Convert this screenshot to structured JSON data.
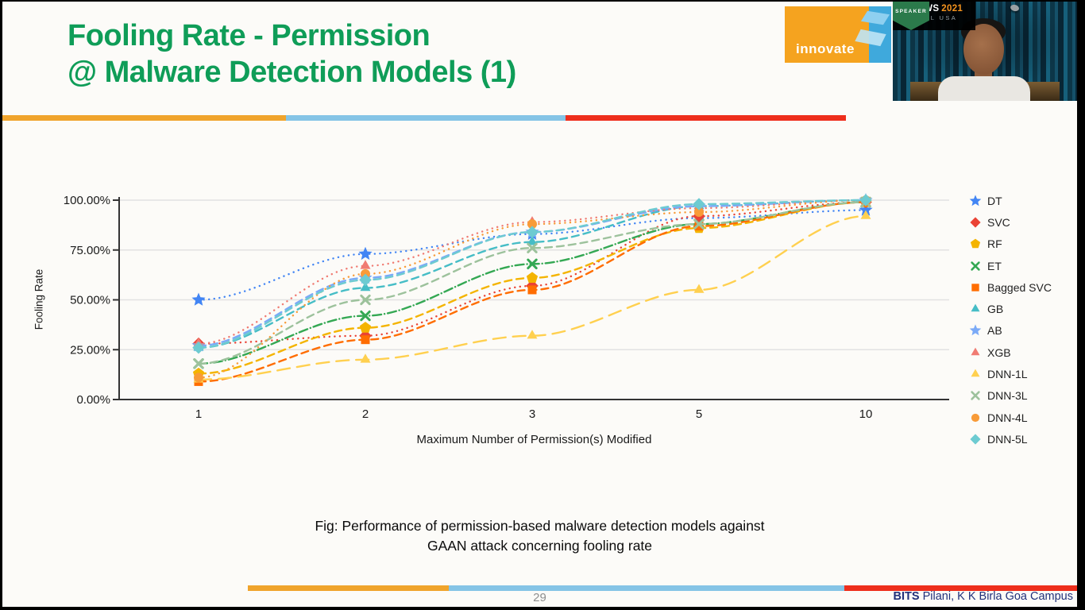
{
  "slide": {
    "title_line1": "Fooling Rate - Permission",
    "title_line2": "@ Malware Detection Models (1)",
    "caption_line1": "Fig: Performance of permission-based malware detection models against",
    "caption_line2": "GAAN attack concerning fooling rate",
    "page_number": "29",
    "footer": {
      "bold": "BITS",
      "rest": " Pilani, K K Birla Goa Campus"
    }
  },
  "logo": {
    "text": "innovate"
  },
  "webcam": {
    "event_logo": {
      "glyph": "✳",
      "name": "DFRWS",
      "year": "2021",
      "subtitle": "VIRTUAL USA"
    },
    "badge": "SPEAKER"
  },
  "colors": {
    "title_green": "#0F9D58",
    "bar_gold": "#F0A42C",
    "bar_blue": "#85C4E6",
    "bar_red": "#EE2E1C",
    "footer_navy": "#21307A",
    "page_gray": "#8E8E8E",
    "logo_orange": "#F5A31F",
    "logo_blue": "#3FA9DC",
    "speaker_green": "#2B7A4B",
    "dfrws_orange": "#F7941D",
    "axis_dark": "#333333",
    "grid_gray": "#E2E2E2",
    "tick_text": "#1A1A1A"
  },
  "chart_data": {
    "type": "line",
    "title": "",
    "xlabel": "Maximum Number of Permission(s) Modified",
    "ylabel": "Fooling Rate",
    "categories": [
      1,
      2,
      3,
      5,
      10
    ],
    "x_tick_labels": [
      "1",
      "2",
      "3",
      "5",
      "10"
    ],
    "y_ticks": [
      "0.00%",
      "25.00%",
      "50.00%",
      "75.00%",
      "100.00%"
    ],
    "ylim": [
      0,
      100
    ],
    "grid": true,
    "legend_position": "right",
    "series": [
      {
        "name": "DT",
        "color": "#4285F4",
        "marker": "star",
        "dash": "dotted",
        "values": [
          50,
          73,
          83,
          91,
          95
        ]
      },
      {
        "name": "SVC",
        "color": "#EA4335",
        "marker": "diamond",
        "dash": "dotted",
        "values": [
          28,
          32,
          57,
          92,
          99
        ]
      },
      {
        "name": "RF",
        "color": "#F4B400",
        "marker": "pentagon",
        "dash": "dashed",
        "values": [
          13,
          36,
          61,
          86,
          99
        ]
      },
      {
        "name": "ET",
        "color": "#34A853",
        "marker": "x",
        "dash": "dashdot",
        "values": [
          18,
          42,
          68,
          88,
          99
        ]
      },
      {
        "name": "Bagged SVC",
        "color": "#FF6D01",
        "marker": "square",
        "dash": "dashed",
        "values": [
          9,
          30,
          55,
          87,
          99
        ]
      },
      {
        "name": "GB",
        "color": "#46BDC6",
        "marker": "triangle",
        "dash": "dashed",
        "values": [
          26,
          56,
          79,
          97,
          100
        ]
      },
      {
        "name": "AB",
        "color": "#7BAAF7",
        "marker": "star",
        "dash": "dashed",
        "values": [
          27,
          61,
          84,
          97,
          100
        ]
      },
      {
        "name": "XGB",
        "color": "#F07B72",
        "marker": "triangle",
        "dash": "dotted",
        "values": [
          28,
          67,
          89,
          96,
          100
        ]
      },
      {
        "name": "DNN-1L",
        "color": "#FFD04F",
        "marker": "triangle",
        "dash": "longdash",
        "values": [
          10,
          20,
          32,
          55,
          92
        ]
      },
      {
        "name": "DNN-3L",
        "color": "#9DC29C",
        "marker": "x",
        "dash": "dashed",
        "values": [
          18,
          50,
          76,
          88,
          99
        ]
      },
      {
        "name": "DNN-4L",
        "color": "#F89B38",
        "marker": "circle",
        "dash": "dotted",
        "values": [
          11,
          63,
          88,
          94,
          100
        ]
      },
      {
        "name": "DNN-5L",
        "color": "#6DCBD1",
        "marker": "diamond",
        "dash": "dashed",
        "values": [
          26,
          60,
          84,
          98,
          100
        ]
      }
    ]
  }
}
